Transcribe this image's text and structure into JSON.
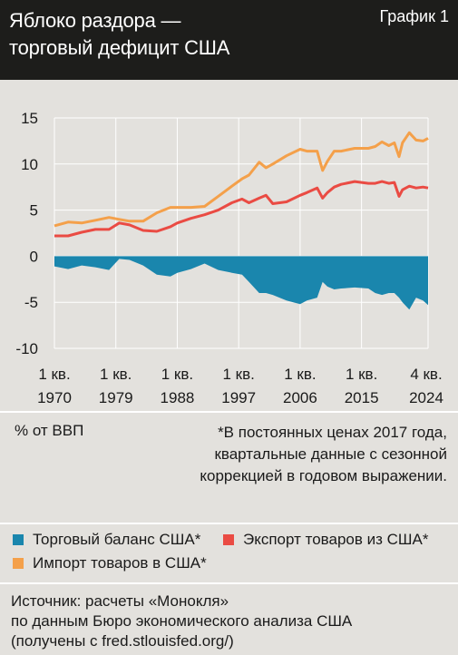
{
  "header": {
    "title_line1": "Яблоко раздора —",
    "title_line2": "торговый дефицит США",
    "badge": "График 1"
  },
  "colors": {
    "balance": "#1a86ad",
    "exports": "#ea4b43",
    "imports": "#f4a04a",
    "header_bg": "#1d1d1b",
    "page_bg": "#e3e1dd"
  },
  "chart_data": {
    "type": "line",
    "xlim": [
      1970,
      2024.75
    ],
    "ylim": [
      -10,
      15
    ],
    "yticks": [
      "15",
      "10",
      "5",
      "0",
      "-5",
      "-10"
    ],
    "xticks": [
      {
        "line1": "1 кв.",
        "line2": "1970",
        "x": 1970
      },
      {
        "line1": "1 кв.",
        "line2": "1979",
        "x": 1979
      },
      {
        "line1": "1 кв.",
        "line2": "1988",
        "x": 1988
      },
      {
        "line1": "1 кв.",
        "line2": "1997",
        "x": 1997
      },
      {
        "line1": "1 кв.",
        "line2": "2006",
        "x": 2006
      },
      {
        "line1": "1 кв.",
        "line2": "2015",
        "x": 2015
      },
      {
        "line1": "4 кв.",
        "line2": "2024",
        "x": 2024.75
      }
    ],
    "grid": true,
    "x": [
      1970,
      1972,
      1974,
      1976,
      1978,
      1979.5,
      1981,
      1983,
      1985,
      1987,
      1988,
      1990,
      1992,
      1994,
      1996,
      1997.5,
      1998.5,
      2000,
      2001,
      2002,
      2004,
      2006,
      2007,
      2008.5,
      2009.3,
      2010,
      2011,
      2012,
      2014,
      2016,
      2017,
      2018,
      2019,
      2019.8,
      2020.5,
      2021,
      2022,
      2023,
      2024,
      2024.75
    ],
    "series": [
      {
        "name": "Торговый баланс США*",
        "key": "balance",
        "style": "area",
        "values": [
          -1.1,
          -1.4,
          -1.0,
          -1.2,
          -1.5,
          -0.3,
          -0.4,
          -1.0,
          -2.0,
          -2.2,
          -1.8,
          -1.4,
          -0.8,
          -1.5,
          -1.8,
          -2.0,
          -2.8,
          -4.0,
          -4.0,
          -4.2,
          -4.8,
          -5.2,
          -4.8,
          -4.5,
          -2.8,
          -3.3,
          -3.6,
          -3.5,
          -3.4,
          -3.5,
          -4.0,
          -4.2,
          -4.0,
          -4.0,
          -4.5,
          -5.0,
          -5.8,
          -4.5,
          -4.8,
          -5.3
        ]
      },
      {
        "name": "Экспорт товаров из США*",
        "key": "exports",
        "style": "line",
        "values": [
          2.2,
          2.2,
          2.6,
          2.9,
          2.9,
          3.6,
          3.4,
          2.8,
          2.7,
          3.2,
          3.6,
          4.1,
          4.5,
          5.0,
          5.8,
          6.2,
          5.8,
          6.3,
          6.6,
          5.7,
          5.9,
          6.6,
          6.9,
          7.4,
          6.3,
          6.9,
          7.5,
          7.8,
          8.1,
          7.9,
          7.9,
          8.1,
          7.9,
          8.0,
          6.5,
          7.2,
          7.6,
          7.4,
          7.5,
          7.4
        ]
      },
      {
        "name": "Импорт товаров в США*",
        "key": "imports",
        "style": "line",
        "values": [
          3.3,
          3.7,
          3.6,
          3.9,
          4.2,
          4.0,
          3.8,
          3.8,
          4.7,
          5.3,
          5.3,
          5.3,
          5.4,
          6.5,
          7.6,
          8.4,
          8.8,
          10.2,
          9.6,
          10.0,
          10.9,
          11.6,
          11.4,
          11.4,
          9.3,
          10.3,
          11.4,
          11.4,
          11.7,
          11.7,
          11.9,
          12.4,
          12.0,
          12.3,
          10.8,
          12.3,
          13.4,
          12.6,
          12.5,
          12.8
        ]
      }
    ]
  },
  "notes": {
    "unit": "% от ВВП",
    "footnote": "*В постоянных ценах 2017 года, квартальные данные с сезонной коррекцией в годовом выражении."
  },
  "legend": {
    "balance": "Торговый баланс США*",
    "exports": "Экспорт товаров из США*",
    "imports": "Импорт товаров в США*"
  },
  "source": {
    "line1": "Источник: расчеты «Монокля»",
    "line2": "по данным Бюро экономического анализа США",
    "line3": "(получены с fred.stlouisfed.org/)"
  }
}
